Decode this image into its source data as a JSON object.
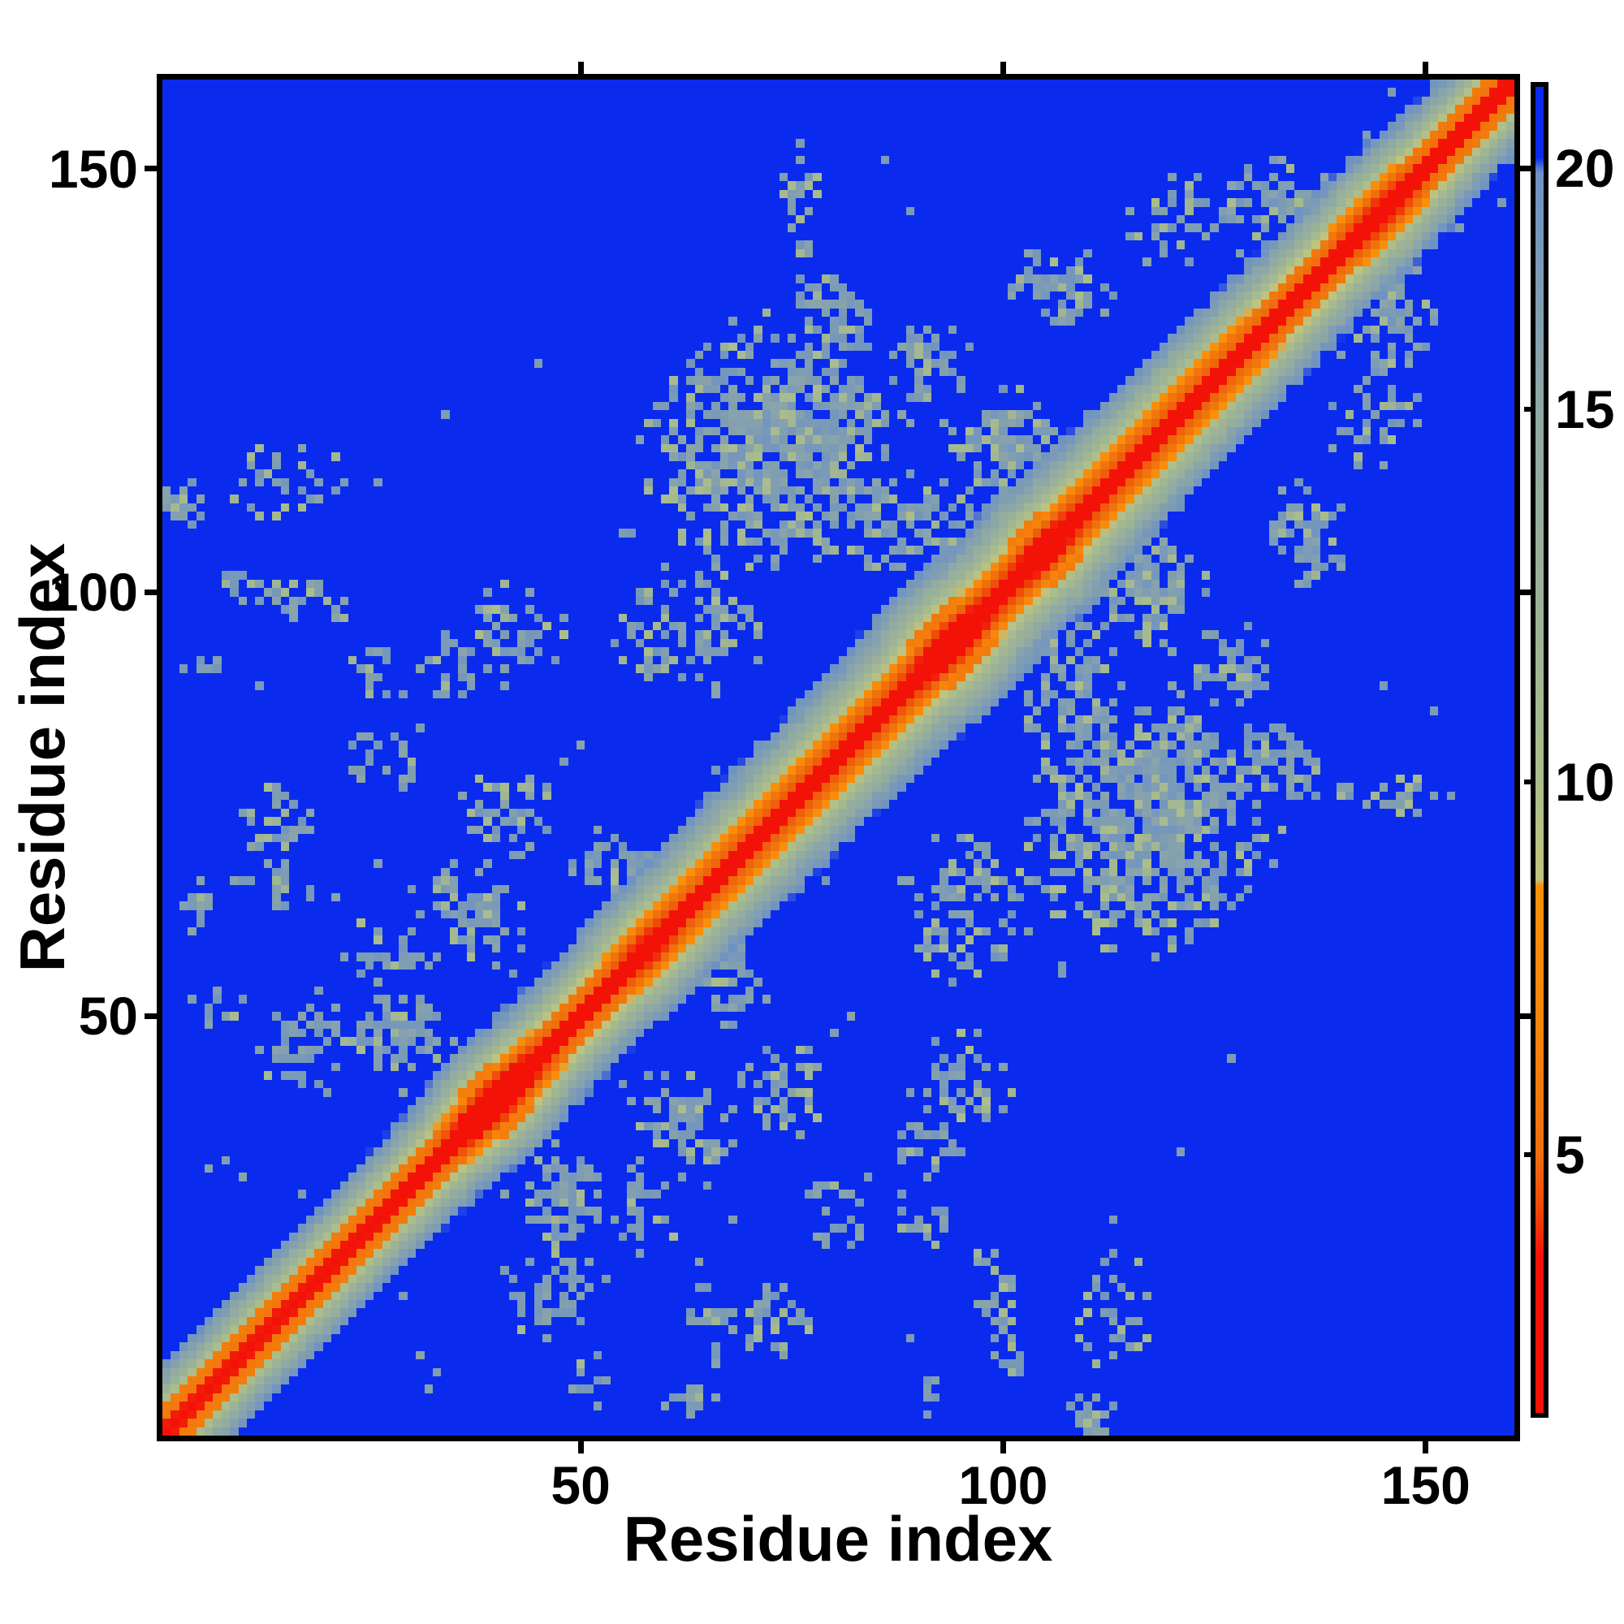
{
  "accent_colors": {
    "background": "#ffffff",
    "frame": "#000000",
    "far_blue": "#0A2BEE",
    "contact_steel_blue": "#6E92C4",
    "mid_green": "#9EB496",
    "khaki": "#ACBE8C",
    "orange": "#FB910A",
    "dark_orange": "#F06F0E",
    "red": "#F31208"
  },
  "chart_data": {
    "type": "heatmap",
    "title": "",
    "xlabel": "Residue index",
    "ylabel": "Residue index",
    "n_residues": 160,
    "axis_range": [
      1,
      160
    ],
    "x_ticks": [
      50,
      100,
      150
    ],
    "x_tick_labels": [
      "50",
      "100",
      "150"
    ],
    "y_ticks": [
      50,
      100,
      150
    ],
    "y_tick_labels": [
      "50",
      "100",
      "150"
    ],
    "grid": false,
    "legend_position": "colorbar-right",
    "colorbar": {
      "tick_values": [
        20,
        15,
        10,
        5
      ],
      "tick_labels": [
        "20",
        "15",
        "10",
        "5"
      ],
      "tick_fractions_from_top": [
        0.061,
        0.243,
        0.524,
        0.805
      ],
      "fraction_to_value_points": [
        [
          0.0,
          22.3
        ],
        [
          0.061,
          20
        ],
        [
          0.243,
          15
        ],
        [
          0.524,
          10
        ],
        [
          0.805,
          5
        ],
        [
          1.0,
          0.7
        ]
      ],
      "orientation": "vertical",
      "high_is_top": true
    },
    "value_color_stops": [
      [
        22.5,
        "#0A2BEE"
      ],
      [
        20.3,
        "#0A2BEE"
      ],
      [
        19.9,
        "#6E92C4"
      ],
      [
        17.5,
        "#7F9DB4"
      ],
      [
        15.0,
        "#90A9A5"
      ],
      [
        12.0,
        "#9EB496"
      ],
      [
        10.0,
        "#ACBE8C"
      ],
      [
        9.0,
        "#BDC380"
      ],
      [
        8.68,
        "#C0C37E"
      ],
      [
        8.6,
        "#FB910A"
      ],
      [
        6.5,
        "#F8830C"
      ],
      [
        5.0,
        "#F06F0E"
      ],
      [
        4.1,
        "#EF4909"
      ],
      [
        3.3,
        "#F31208"
      ],
      [
        0.0,
        "#F31208"
      ]
    ],
    "checker": {
      "vmin": 4.3,
      "vmax": 8.6,
      "blend_color": "#E25C0F",
      "blend_amount": 0.32
    },
    "diagonal_band": {
      "base_value": 1.2,
      "slope_per_residue": 2.0,
      "width_modulation": {
        "base": 0.88,
        "amp": 0.34,
        "center": 95,
        "sigma": 48
      },
      "bulges": [
        {
          "c": 40,
          "s": 3.4,
          "w": 4.5
        },
        {
          "c": 58,
          "s": 1.2,
          "w": 3
        },
        {
          "c": 94,
          "s": 2.0,
          "w": 3.5
        },
        {
          "c": 105,
          "s": 1.5,
          "w": 3
        },
        {
          "c": 145,
          "s": 1.4,
          "w": 4
        }
      ],
      "fringe_noise": {
        "vmin": 13,
        "vmax": 21,
        "amp": 0.9
      }
    },
    "contact_clusters": [
      {
        "i": 72,
        "j": 117,
        "rx": 15,
        "ry": 15,
        "density": 0.72
      },
      {
        "i": 88,
        "j": 108,
        "rx": 9,
        "ry": 6,
        "density": 0.6
      },
      {
        "i": 62,
        "j": 95,
        "rx": 10,
        "ry": 8,
        "density": 0.5
      },
      {
        "i": 15,
        "j": 113,
        "rx": 8,
        "ry": 5,
        "density": 0.45
      },
      {
        "i": 3,
        "j": 110,
        "rx": 3,
        "ry": 3,
        "density": 0.8
      },
      {
        "i": 41,
        "j": 95,
        "rx": 8,
        "ry": 6,
        "density": 0.5
      },
      {
        "i": 27,
        "j": 80,
        "rx": 5,
        "ry": 4,
        "density": 0.4
      },
      {
        "i": 26,
        "j": 90,
        "rx": 4,
        "ry": 4,
        "density": 0.5
      },
      {
        "i": 41,
        "j": 74,
        "rx": 6,
        "ry": 5,
        "density": 0.55
      },
      {
        "i": 53,
        "j": 68,
        "rx": 5,
        "ry": 4,
        "density": 0.6
      },
      {
        "i": 101,
        "j": 117,
        "rx": 8,
        "ry": 7,
        "density": 0.65
      },
      {
        "i": 107,
        "j": 136,
        "rx": 6,
        "ry": 5,
        "density": 0.55
      },
      {
        "i": 120,
        "j": 144,
        "rx": 6,
        "ry": 6,
        "density": 0.4
      },
      {
        "i": 133,
        "j": 146,
        "rx": 7,
        "ry": 5,
        "density": 0.55
      },
      {
        "i": 76,
        "j": 146,
        "rx": 3,
        "ry": 8,
        "density": 0.5
      },
      {
        "i": 80,
        "j": 133,
        "rx": 8,
        "ry": 6,
        "density": 0.55
      },
      {
        "i": 91,
        "j": 127,
        "rx": 6,
        "ry": 5,
        "density": 0.55
      },
      {
        "i": 4,
        "j": 63,
        "rx": 3,
        "ry": 3,
        "density": 0.5
      },
      {
        "i": 7,
        "j": 51,
        "rx": 4,
        "ry": 3,
        "density": 0.5
      },
      {
        "i": 18,
        "j": 46,
        "rx": 6,
        "ry": 6,
        "density": 0.55
      },
      {
        "i": 29,
        "j": 48,
        "rx": 6,
        "ry": 5,
        "density": 0.7
      },
      {
        "i": 37,
        "j": 62,
        "rx": 8,
        "ry": 7,
        "density": 0.45
      },
      {
        "i": 14,
        "j": 66,
        "rx": 6,
        "ry": 4,
        "density": 0.4
      },
      {
        "i": 68,
        "j": 107,
        "rx": 17,
        "ry": 1,
        "density": 0.5
      },
      {
        "i": 34,
        "j": 90,
        "rx": 4,
        "ry": 3,
        "density": 0.5
      },
      {
        "i": 81,
        "j": 121,
        "rx": 8,
        "ry": 6,
        "density": 0.6
      },
      {
        "i": 10,
        "j": 100,
        "rx": 4,
        "ry": 3,
        "density": 0.45
      },
      {
        "i": 14,
        "j": 73,
        "rx": 5,
        "ry": 5,
        "density": 0.5
      },
      {
        "i": 18,
        "j": 99,
        "rx": 6,
        "ry": 3,
        "density": 0.45
      },
      {
        "i": 27,
        "j": 57,
        "rx": 5,
        "ry": 5,
        "density": 0.45
      },
      {
        "i": 5,
        "j": 92,
        "rx": 3,
        "ry": 2,
        "density": 0.5
      }
    ],
    "cluster_cell_values": {
      "steel_min": 15.8,
      "steel_span": 3.4,
      "khaki_prob": 0.2,
      "khaki_min": 10.0,
      "khaki_span": 2.2
    },
    "isolated_dot_rate_near": 0.005,
    "isolated_dot_rate_far": 0.0012,
    "symmetric": true
  }
}
